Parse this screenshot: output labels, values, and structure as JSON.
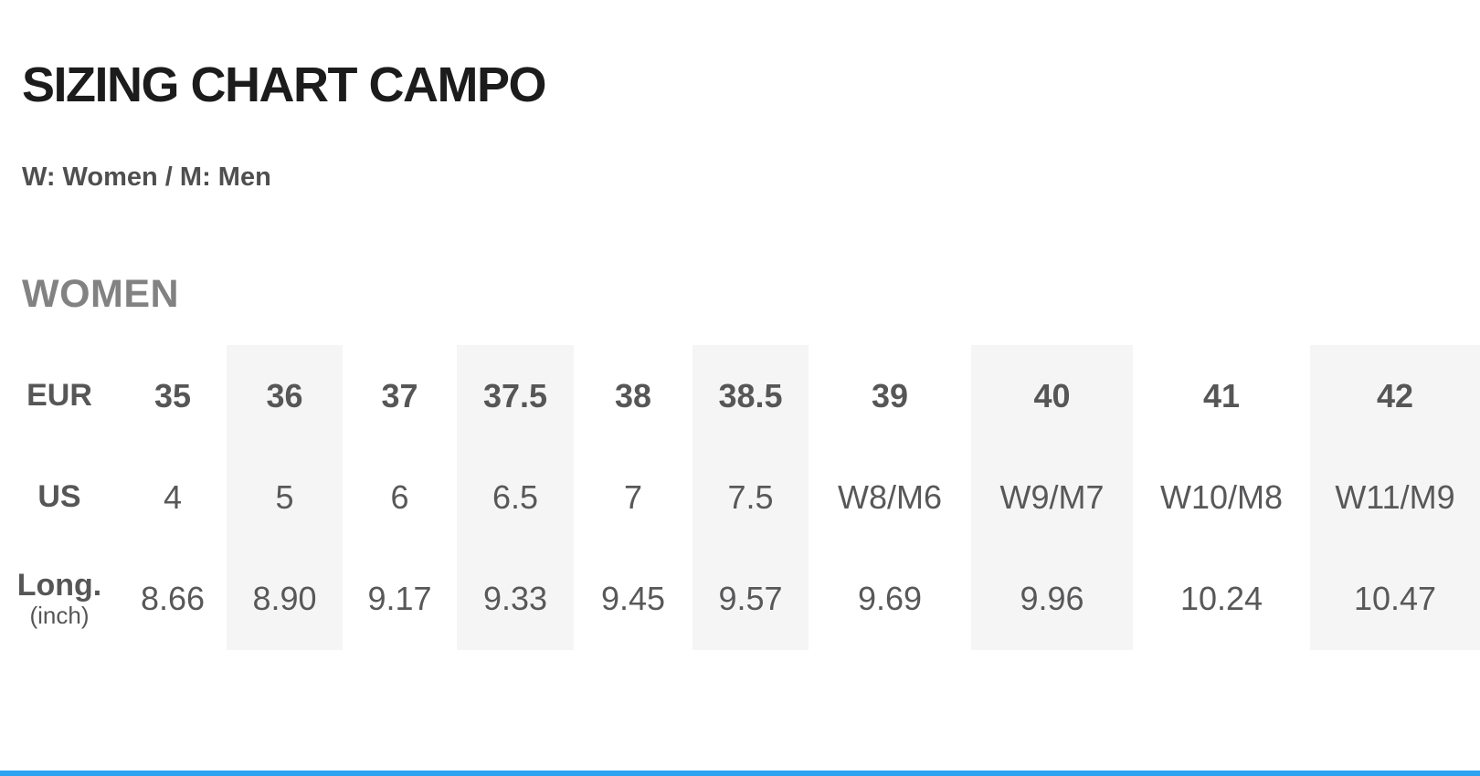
{
  "header": {
    "title": "SIZING CHART CAMPO",
    "legend": "W: Women / M: Men"
  },
  "section": {
    "heading": "WOMEN"
  },
  "table": {
    "row_labels": {
      "eur": "EUR",
      "us": "US",
      "long": "Long.",
      "long_unit": "(inch)"
    },
    "columns": [
      {
        "eur": "35",
        "us": "4",
        "long_inch": "8.66",
        "striped": false
      },
      {
        "eur": "36",
        "us": "5",
        "long_inch": "8.90",
        "striped": true
      },
      {
        "eur": "37",
        "us": "6",
        "long_inch": "9.17",
        "striped": false
      },
      {
        "eur": "37.5",
        "us": "6.5",
        "long_inch": "9.33",
        "striped": true
      },
      {
        "eur": "38",
        "us": "7",
        "long_inch": "9.45",
        "striped": false
      },
      {
        "eur": "38.5",
        "us": "7.5",
        "long_inch": "9.57",
        "striped": true
      },
      {
        "eur": "39",
        "us": "W8/M6",
        "long_inch": "9.69",
        "striped": false
      },
      {
        "eur": "40",
        "us": "W9/M7",
        "long_inch": "9.96",
        "striped": true
      },
      {
        "eur": "41",
        "us": "W10/M8",
        "long_inch": "10.24",
        "striped": false
      },
      {
        "eur": "42",
        "us": "W11/M9",
        "long_inch": "10.47",
        "striped": true
      }
    ]
  },
  "colors": {
    "title_text": "#1c1c1c",
    "legend_text": "#4f4f4f",
    "section_heading_text": "#828282",
    "table_text": "#58585a",
    "stripe_background": "#f5f5f5",
    "accent_bar": "#2ea3f2"
  }
}
